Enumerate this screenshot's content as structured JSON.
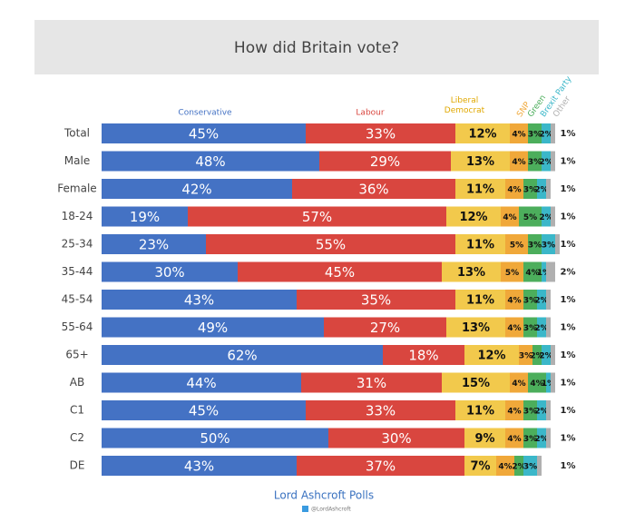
{
  "chart_data": {
    "type": "stacked-bar",
    "title": "How did Britain vote?",
    "categories": [
      "Total",
      "Male",
      "Female",
      "18-24",
      "25-34",
      "35-44",
      "45-54",
      "55-64",
      "65+",
      "AB",
      "C1",
      "C2",
      "DE"
    ],
    "xlim": [
      0,
      100
    ],
    "series": [
      {
        "name": "Conservative",
        "color": "#4472c4",
        "values": [
          45,
          48,
          42,
          19,
          23,
          30,
          43,
          49,
          62,
          44,
          45,
          50,
          43
        ],
        "value_labels": [
          "45%",
          "48%",
          "42%",
          "19%",
          "23%",
          "30%",
          "43%",
          "49%",
          "62%",
          "44%",
          "45%",
          "50%",
          "43%"
        ]
      },
      {
        "name": "Labour",
        "color": "#d9463f",
        "values": [
          33,
          29,
          36,
          57,
          55,
          45,
          35,
          27,
          18,
          31,
          33,
          30,
          37
        ],
        "value_labels": [
          "33%",
          "29%",
          "36%",
          "57%",
          "55%",
          "45%",
          "35%",
          "27%",
          "18%",
          "31%",
          "33%",
          "30%",
          "37%"
        ]
      },
      {
        "name": "Liberal Democrat",
        "color": "#f2c94c",
        "values": [
          12,
          13,
          11,
          12,
          11,
          13,
          11,
          13,
          12,
          15,
          11,
          9,
          7
        ],
        "value_labels": [
          "12%",
          "13%",
          "11%",
          "12%",
          "11%",
          "13%",
          "11%",
          "13%",
          "12%",
          "15%",
          "11%",
          "9%",
          "7%"
        ]
      },
      {
        "name": "SNP",
        "color": "#f0a83a",
        "values": [
          4,
          4,
          4,
          4,
          5,
          5,
          4,
          4,
          3,
          4,
          4,
          4,
          4
        ],
        "value_labels": [
          "4%",
          "4%",
          "4%",
          "4%",
          "5%",
          "5%",
          "4%",
          "4%",
          "3%",
          "4%",
          "4%",
          "4%",
          "4%"
        ]
      },
      {
        "name": "Green",
        "color": "#4cae5c",
        "values": [
          3,
          3,
          3,
          5,
          3,
          4,
          3,
          3,
          2,
          4,
          3,
          3,
          2
        ],
        "value_labels": [
          "3%",
          "3%",
          "3%",
          "5%",
          "3%",
          "4%",
          "3%",
          "3%",
          "2%",
          "4%",
          "3%",
          "3%",
          "2%"
        ]
      },
      {
        "name": "Brexit Party",
        "color": "#3bb7c9",
        "values": [
          2,
          2,
          2,
          2,
          3,
          1,
          2,
          2,
          2,
          1,
          2,
          2,
          3
        ],
        "value_labels": [
          "2%",
          "2%",
          "2%",
          "2%",
          "3%",
          "1%",
          "2%",
          "2%",
          "2%",
          "1%",
          "2%",
          "2%",
          "3%"
        ]
      },
      {
        "name": "Other",
        "color": "#b0b0b0",
        "values": [
          1,
          1,
          1,
          1,
          1,
          2,
          1,
          1,
          1,
          1,
          1,
          1,
          1
        ],
        "value_labels": [
          "1%",
          "1%",
          "1%",
          "1%",
          "1%",
          "2%",
          "1%",
          "1%",
          "1%",
          "1%",
          "1%",
          "1%",
          "1%"
        ]
      }
    ],
    "source": "Lord Ashcroft Polls",
    "handle": "@LordAshcroft"
  }
}
